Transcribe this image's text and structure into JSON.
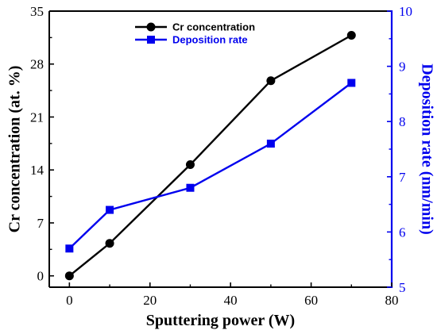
{
  "chart_data": {
    "type": "line",
    "title": "",
    "xlabel": "Sputtering power (W)",
    "ylabel": "Cr concentration (at. %)",
    "y2label": "Deposition rate (nm/min)",
    "xlim": [
      -5,
      80
    ],
    "ylim": [
      -1.5,
      35
    ],
    "y2lim": [
      5,
      10
    ],
    "xticks": [
      "0",
      "20",
      "40",
      "60",
      "80"
    ],
    "yticks": [
      "0",
      "7",
      "14",
      "21",
      "28",
      "35"
    ],
    "y2ticks": [
      "5",
      "6",
      "7",
      "8",
      "9",
      "10"
    ],
    "grid": false,
    "legend": "top-center",
    "series": [
      {
        "name": "Cr concentration",
        "axis": "left",
        "color": "#000000",
        "marker": "circle",
        "x": [
          0,
          10,
          30,
          50,
          70
        ],
        "y": [
          0,
          4.3,
          14.7,
          25.8,
          31.8
        ]
      },
      {
        "name": "Deposition rate",
        "axis": "right",
        "color": "#0000ee",
        "marker": "square",
        "x": [
          0,
          10,
          30,
          50,
          70
        ],
        "y": [
          5.7,
          6.4,
          6.8,
          7.6,
          8.7
        ]
      }
    ]
  }
}
